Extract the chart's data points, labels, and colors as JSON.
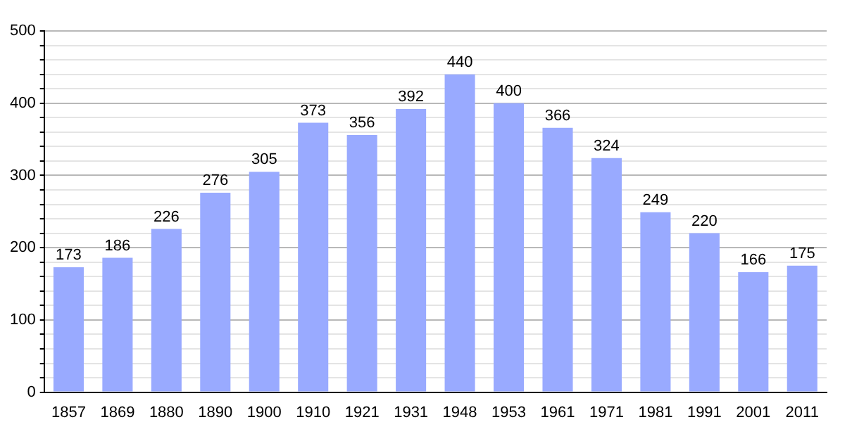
{
  "chart_data": {
    "type": "bar",
    "categories": [
      "1857",
      "1869",
      "1880",
      "1890",
      "1900",
      "1910",
      "1921",
      "1931",
      "1948",
      "1953",
      "1961",
      "1971",
      "1981",
      "1991",
      "2001",
      "2011"
    ],
    "values": [
      173,
      186,
      226,
      276,
      305,
      373,
      356,
      392,
      440,
      400,
      366,
      324,
      249,
      220,
      166,
      175
    ],
    "color": "#99aaff",
    "ylim": [
      0,
      500
    ],
    "yticks": [
      0,
      {
        "value": 20,
        "label": null
      },
      {
        "value": 40,
        "label": null
      },
      {
        "value": 60,
        "label": null
      },
      {
        "value": 80,
        "label": null
      },
      100,
      {
        "value": 120,
        "label": null
      },
      {
        "value": 140,
        "label": null
      },
      {
        "value": 160,
        "label": null
      },
      {
        "value": 180,
        "label": null
      },
      200,
      {
        "value": 220,
        "label": null
      },
      {
        "value": 240,
        "label": null
      },
      {
        "value": 260,
        "label": null
      },
      {
        "value": 280,
        "label": null
      },
      300,
      {
        "value": 320,
        "label": null
      },
      {
        "value": 340,
        "label": null
      },
      {
        "value": 360,
        "label": null
      },
      {
        "value": 380,
        "label": null
      },
      400,
      {
        "value": 420,
        "label": null
      },
      {
        "value": 440,
        "label": null
      },
      {
        "value": 460,
        "label": null
      },
      {
        "value": 480,
        "label": null
      },
      500
    ],
    "grid": "y",
    "data_labels": true
  }
}
